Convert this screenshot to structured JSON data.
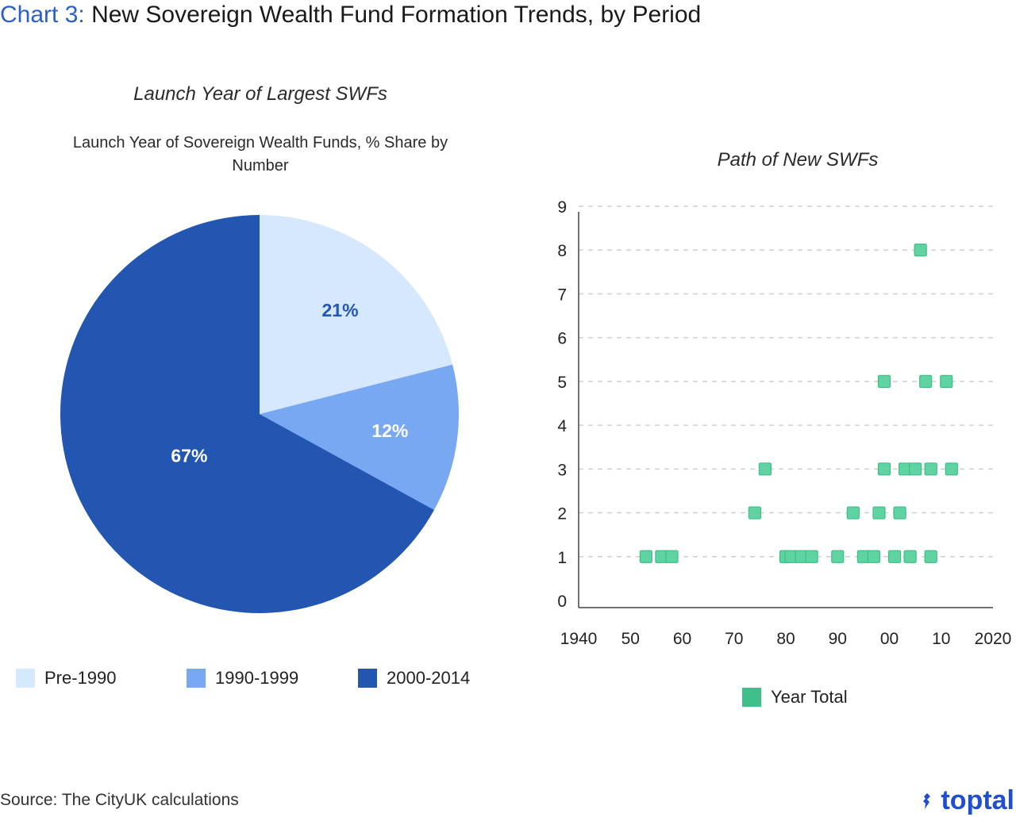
{
  "header": {
    "label": "Chart 3:",
    "title": "New Sovereign Wealth Fund Formation Trends, by Period"
  },
  "source": "Source: The CityUK calculations",
  "logo": {
    "text": "toptal",
    "icon": "toptal-logo-icon",
    "color": "#204ecf"
  },
  "chart_data": [
    {
      "type": "pie",
      "title": "Launch Year of Largest SWFs",
      "subtitle": "Launch Year of Sovereign Wealth Funds, % Share by Number",
      "slices": [
        {
          "name": "Pre-1990",
          "value": 21,
          "label": "21%",
          "color": "#d6e8fd",
          "label_color": "#2456b5"
        },
        {
          "name": "1990-1999",
          "value": 12,
          "label": "12%",
          "color": "#78a8f2",
          "label_color": "#ffffff"
        },
        {
          "name": "2000-2014",
          "value": 67,
          "label": "67%",
          "color": "#2256b1",
          "label_color": "#ffffff"
        }
      ],
      "legend": "bottom"
    },
    {
      "type": "scatter",
      "title": "Path of New SWFs",
      "xlabel": "",
      "ylabel": "",
      "xlim": [
        1940,
        2020
      ],
      "ylim": [
        0,
        9
      ],
      "x_ticks": [
        1940,
        1950,
        1960,
        1970,
        1980,
        1990,
        2000,
        2010,
        2020
      ],
      "x_tick_labels": [
        "1940",
        "50",
        "60",
        "70",
        "80",
        "90",
        "00",
        "10",
        "2020"
      ],
      "y_ticks": [
        0,
        1,
        2,
        3,
        4,
        5,
        6,
        7,
        8,
        9
      ],
      "y_tick_labels": [
        "0",
        "1",
        "2",
        "3",
        "4",
        "5",
        "6",
        "7",
        "8",
        "9"
      ],
      "grid": "horizontal-dashed",
      "marker_color": "#5fd4a2",
      "marker_edge": "#3dbf86",
      "series": [
        {
          "name": "Year Total",
          "points": [
            [
              1953,
              1
            ],
            [
              1956,
              1
            ],
            [
              1958,
              1
            ],
            [
              1980,
              1
            ],
            [
              1981,
              1
            ],
            [
              1983,
              1
            ],
            [
              1985,
              1
            ],
            [
              1990,
              1
            ],
            [
              1995,
              1
            ],
            [
              1997,
              1
            ],
            [
              2001,
              1
            ],
            [
              2004,
              1
            ],
            [
              2008,
              1
            ],
            [
              1974,
              2
            ],
            [
              1993,
              2
            ],
            [
              1998,
              2
            ],
            [
              2002,
              2
            ],
            [
              1976,
              3
            ],
            [
              1999,
              3
            ],
            [
              2003,
              3
            ],
            [
              2005,
              3
            ],
            [
              2008,
              3
            ],
            [
              2012,
              3
            ],
            [
              1999,
              5
            ],
            [
              2007,
              5
            ],
            [
              2011,
              5
            ],
            [
              2006,
              8
            ]
          ]
        }
      ],
      "legend": "bottom"
    }
  ]
}
